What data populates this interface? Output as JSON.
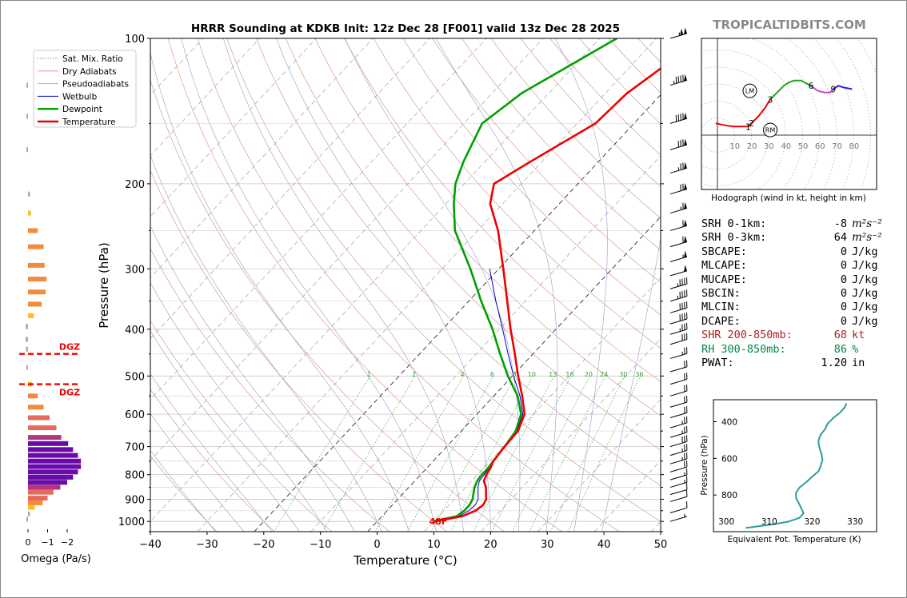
{
  "title": "HRRR Sounding at KDKB Init: 12z Dec 28 [F001] valid 13z Dec 28 2025",
  "watermark": "TROPICALTIDBITS.COM",
  "chart_data": [
    {
      "id": "skewt",
      "type": "line",
      "xlabel": "Temperature (°C)",
      "ylabel": "Pressure (hPa)",
      "xlim": [
        -40,
        50
      ],
      "ylim": [
        1050,
        100
      ],
      "xticks": [
        "−40",
        "−30",
        "−20",
        "−10",
        "0",
        "10",
        "20",
        "30",
        "40",
        "50"
      ],
      "yticks": [
        "100",
        "200",
        "300",
        "400",
        "500",
        "600",
        "700",
        "800",
        "900",
        "1000"
      ],
      "legend": [
        "Sat. Mix. Ratio",
        "Dry Adiabats",
        "Pseudoadiabats",
        "Wetbulb",
        "Dewpoint",
        "Temperature"
      ],
      "mixing_ratio_labels": [
        "1",
        "2",
        "4",
        "6",
        "8",
        "10",
        "13",
        "16",
        "20",
        "24",
        "30",
        "36"
      ],
      "surface_temp_label": "48F",
      "series": [
        {
          "name": "Temperature",
          "color": "#ee0000",
          "points": [
            [
              1000,
              10.2
            ],
            [
              975,
              14.2
            ],
            [
              950,
              15.6
            ],
            [
              925,
              16.0
            ],
            [
              900,
              15.6
            ],
            [
              875,
              14.6
            ],
            [
              850,
              13.6
            ],
            [
              825,
              12.2
            ],
            [
              800,
              11.6
            ],
            [
              775,
              11.2
            ],
            [
              750,
              10.6
            ],
            [
              700,
              10.2
            ],
            [
              650,
              10.0
            ],
            [
              600,
              8.4
            ],
            [
              550,
              5.0
            ],
            [
              500,
              1.0
            ],
            [
              450,
              -3.2
            ],
            [
              400,
              -8.0
            ],
            [
              350,
              -13.2
            ],
            [
              300,
              -19.2
            ],
            [
              250,
              -26.4
            ],
            [
              220,
              -32.2
            ],
            [
              200,
              -34.8
            ],
            [
              180,
              -32.0
            ],
            [
              150,
              -26.8
            ],
            [
              130,
              -26.2
            ],
            [
              100,
              -22.0
            ]
          ]
        },
        {
          "name": "Dewpoint",
          "color": "#00a000",
          "points": [
            [
              1000,
              9.8
            ],
            [
              975,
              13.2
            ],
            [
              950,
              13.6
            ],
            [
              925,
              13.6
            ],
            [
              900,
              13.2
            ],
            [
              875,
              12.4
            ],
            [
              850,
              11.6
            ],
            [
              825,
              11.0
            ],
            [
              800,
              10.8
            ],
            [
              775,
              10.8
            ],
            [
              750,
              10.6
            ],
            [
              700,
              10.2
            ],
            [
              650,
              9.6
            ],
            [
              600,
              7.8
            ],
            [
              550,
              4.2
            ],
            [
              500,
              -0.8
            ],
            [
              450,
              -5.8
            ],
            [
              400,
              -11.2
            ],
            [
              350,
              -17.8
            ],
            [
              300,
              -25.0
            ],
            [
              250,
              -34.0
            ],
            [
              220,
              -38.6
            ],
            [
              200,
              -41.6
            ],
            [
              180,
              -43.8
            ],
            [
              150,
              -46.8
            ],
            [
              130,
              -44.8
            ],
            [
              100,
              -37.0
            ]
          ]
        },
        {
          "name": "Wetbulb",
          "color": "#0000cc",
          "points": [
            [
              1000,
              9.9
            ],
            [
              975,
              13.6
            ],
            [
              950,
              14.4
            ],
            [
              925,
              14.6
            ],
            [
              900,
              14.2
            ],
            [
              875,
              13.2
            ],
            [
              850,
              12.2
            ],
            [
              825,
              11.4
            ],
            [
              800,
              11.2
            ],
            [
              775,
              11.0
            ],
            [
              750,
              10.6
            ],
            [
              700,
              10.2
            ],
            [
              650,
              9.8
            ],
            [
              600,
              8.1
            ],
            [
              550,
              4.6
            ],
            [
              500,
              0.2
            ],
            [
              450,
              -4.4
            ],
            [
              400,
              -9.4
            ],
            [
              350,
              -15.2
            ],
            [
              300,
              -21.6
            ]
          ]
        }
      ]
    },
    {
      "id": "omega",
      "type": "bar",
      "xlabel": "Omega (Pa/s)",
      "xticks": [
        "0",
        "−1",
        "−2"
      ],
      "dgz_label": "DGZ",
      "dgz_hpa": [
        450,
        520
      ],
      "values": [
        {
          "p": 990,
          "w": 0.1
        },
        {
          "p": 965,
          "w": -0.1
        },
        {
          "p": 935,
          "w": -0.35
        },
        {
          "p": 915,
          "w": -0.75
        },
        {
          "p": 895,
          "w": -1.0
        },
        {
          "p": 870,
          "w": -1.3
        },
        {
          "p": 850,
          "w": -1.65
        },
        {
          "p": 830,
          "w": -2.0
        },
        {
          "p": 810,
          "w": -2.3
        },
        {
          "p": 790,
          "w": -2.55
        },
        {
          "p": 770,
          "w": -2.7
        },
        {
          "p": 750,
          "w": -2.7
        },
        {
          "p": 730,
          "w": -2.55
        },
        {
          "p": 710,
          "w": -2.3
        },
        {
          "p": 690,
          "w": -2.05
        },
        {
          "p": 670,
          "w": -1.7
        },
        {
          "p": 640,
          "w": -1.45
        },
        {
          "p": 610,
          "w": -1.1
        },
        {
          "p": 580,
          "w": -0.8
        },
        {
          "p": 550,
          "w": -0.5
        },
        {
          "p": 520,
          "w": -0.2
        },
        {
          "p": 480,
          "w": 0.15
        },
        {
          "p": 440,
          "w": 0.25
        },
        {
          "p": 420,
          "w": 0.3
        },
        {
          "p": 395,
          "w": 0.3
        },
        {
          "p": 375,
          "w": -0.3
        },
        {
          "p": 355,
          "w": -0.7
        },
        {
          "p": 335,
          "w": -0.9
        },
        {
          "p": 315,
          "w": -0.95
        },
        {
          "p": 295,
          "w": -0.85
        },
        {
          "p": 270,
          "w": -0.8
        },
        {
          "p": 250,
          "w": -0.5
        },
        {
          "p": 230,
          "w": -0.15
        },
        {
          "p": 210,
          "w": -0.1
        },
        {
          "p": 170,
          "w": 0.15
        },
        {
          "p": 145,
          "w": 0.15
        },
        {
          "p": 125,
          "w": 0.2
        }
      ]
    },
    {
      "id": "hodograph",
      "type": "line",
      "caption": "Hodograph (wind in kt, height in km)",
      "ring_labels": [
        "10",
        "20",
        "30",
        "40",
        "50",
        "60",
        "70",
        "80"
      ],
      "height_labels": [
        {
          "t": "1",
          "u": 18,
          "v": 5
        },
        {
          "t": "2",
          "u": 20,
          "v": 7
        },
        {
          "t": "3",
          "u": 31,
          "v": 21
        },
        {
          "t": "6",
          "u": 55,
          "v": 29
        },
        {
          "t": "9",
          "u": 68,
          "v": 27
        }
      ],
      "storm_markers": [
        {
          "t": "LM",
          "u": 19,
          "v": 26
        },
        {
          "t": "RM",
          "u": 31,
          "v": 3
        }
      ],
      "segments": [
        {
          "color": "#ee0000",
          "points": [
            [
              -1,
              7
            ],
            [
              3,
              6
            ],
            [
              9,
              5
            ],
            [
              14,
              5
            ],
            [
              18,
              5
            ],
            [
              20,
              7
            ],
            [
              24,
              11
            ],
            [
              28,
              16
            ],
            [
              31,
              21
            ]
          ]
        },
        {
          "color": "#20a020",
          "points": [
            [
              31,
              21
            ],
            [
              35,
              25
            ],
            [
              39,
              29
            ],
            [
              42,
              31
            ],
            [
              45,
              32
            ],
            [
              49,
              32
            ],
            [
              53,
              30
            ],
            [
              56,
              28
            ]
          ]
        },
        {
          "color": "#cc44cc",
          "points": [
            [
              56,
              28
            ],
            [
              59,
              26
            ],
            [
              63,
              25
            ],
            [
              66,
              25
            ],
            [
              68,
              27
            ]
          ]
        },
        {
          "color": "#2222ee",
          "points": [
            [
              68,
              27
            ],
            [
              71,
              29
            ],
            [
              74,
              28
            ],
            [
              79,
              27
            ]
          ]
        }
      ]
    },
    {
      "id": "theta_e",
      "type": "line",
      "xlabel": "Equivalent Pot. Temperature (K)",
      "ylabel": "Pressure (hPa)",
      "xticks": [
        "300",
        "310",
        "320",
        "330"
      ],
      "yticks": [
        "400",
        "600",
        "800"
      ],
      "xlim": [
        297,
        335
      ],
      "ylim": [
        1000,
        280
      ],
      "series": [
        {
          "name": "ThetaE",
          "color": "#2a9d9d",
          "points": [
            [
              980,
              304.5
            ],
            [
              960,
              311
            ],
            [
              945,
              314.5
            ],
            [
              925,
              317
            ],
            [
              900,
              318
            ],
            [
              875,
              317.5
            ],
            [
              850,
              317
            ],
            [
              820,
              316.3
            ],
            [
              790,
              316.2
            ],
            [
              760,
              317
            ],
            [
              730,
              318.6
            ],
            [
              700,
              320
            ],
            [
              670,
              321.5
            ],
            [
              640,
              322
            ],
            [
              610,
              322.4
            ],
            [
              580,
              322.2
            ],
            [
              550,
              321.8
            ],
            [
              520,
              321.5
            ],
            [
              500,
              321.5
            ],
            [
              470,
              322
            ],
            [
              440,
              323
            ],
            [
              410,
              323.6
            ],
            [
              380,
              324.9
            ],
            [
              350,
              326.5
            ],
            [
              320,
              327.6
            ],
            [
              300,
              328.0
            ]
          ]
        }
      ]
    }
  ],
  "stats": [
    {
      "key": "SRH 0-1km:",
      "value": "-8",
      "unit": "m²s⁻²",
      "color": "#000000"
    },
    {
      "key": "SRH 0-3km:",
      "value": "64",
      "unit": "m²s⁻²",
      "color": "#000000"
    },
    {
      "key": "SBCAPE:",
      "value": "0",
      "unit": "J/kg",
      "color": "#000000"
    },
    {
      "key": "MLCAPE:",
      "value": "0",
      "unit": "J/kg",
      "color": "#000000"
    },
    {
      "key": "MUCAPE:",
      "value": "0",
      "unit": "J/kg",
      "color": "#000000"
    },
    {
      "key": "SBCIN:",
      "value": "0",
      "unit": "J/kg",
      "color": "#000000"
    },
    {
      "key": "MLCIN:",
      "value": "0",
      "unit": "J/kg",
      "color": "#000000"
    },
    {
      "key": "DCAPE:",
      "value": "0",
      "unit": "J/kg",
      "color": "#000000"
    },
    {
      "key": "SHR 200-850mb:",
      "value": "68",
      "unit": "kt",
      "color": "#aa2222"
    },
    {
      "key": "RH 300-850mb:",
      "value": "86",
      "unit": "%",
      "color": "#008844"
    },
    {
      "key": "PWAT:",
      "value": "1.20",
      "unit": "in",
      "color": "#000000"
    }
  ]
}
